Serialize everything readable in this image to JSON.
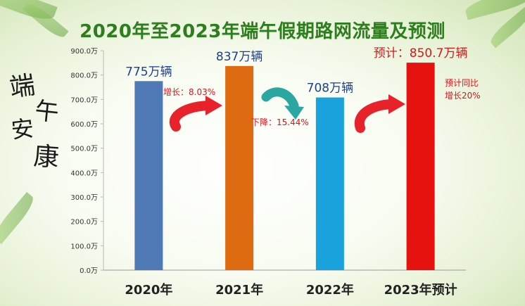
{
  "title": "2020年至2023年端午假期路网流量及预测",
  "decoration": {
    "calligraphy": "端午安康"
  },
  "annotations": {
    "growth_2021": "增长：8.03%",
    "decline_2022": "下降：15.44%",
    "forecast_growth_line1": "预计同比",
    "forecast_growth_line2": "增长20%"
  },
  "colors": {
    "title": "#2e7d1f",
    "arrow_red": "#e8222a",
    "arrow_teal": "#2aa7a0"
  },
  "chart_data": {
    "type": "bar",
    "categories": [
      "2020年",
      "2021年",
      "2022年",
      "2023年预计"
    ],
    "values": [
      775,
      837,
      708,
      850.7
    ],
    "value_labels": [
      "775万辆",
      "837万辆",
      "708万辆",
      "预计：850.7万辆"
    ],
    "bar_colors": [
      "#4e79b4",
      "#de6b12",
      "#19a2db",
      "#e5120f"
    ],
    "value_label_colors": [
      "#1f3f8f",
      "#1f3f8f",
      "#1f3f8f",
      "#d8161a"
    ],
    "ylim": [
      0,
      900
    ],
    "yticks": [
      0,
      100,
      200,
      300,
      400,
      500,
      600,
      700,
      800,
      900
    ],
    "ytick_labels": [
      "0.0万",
      "100.0万",
      "200.0万",
      "300.0万",
      "400.0万",
      "500.0万",
      "600.0万",
      "700.0万",
      "800.0万",
      "900.0万"
    ],
    "grid": false,
    "legend": "none",
    "title": "2020年至2023年端午假期路网流量及预测"
  }
}
